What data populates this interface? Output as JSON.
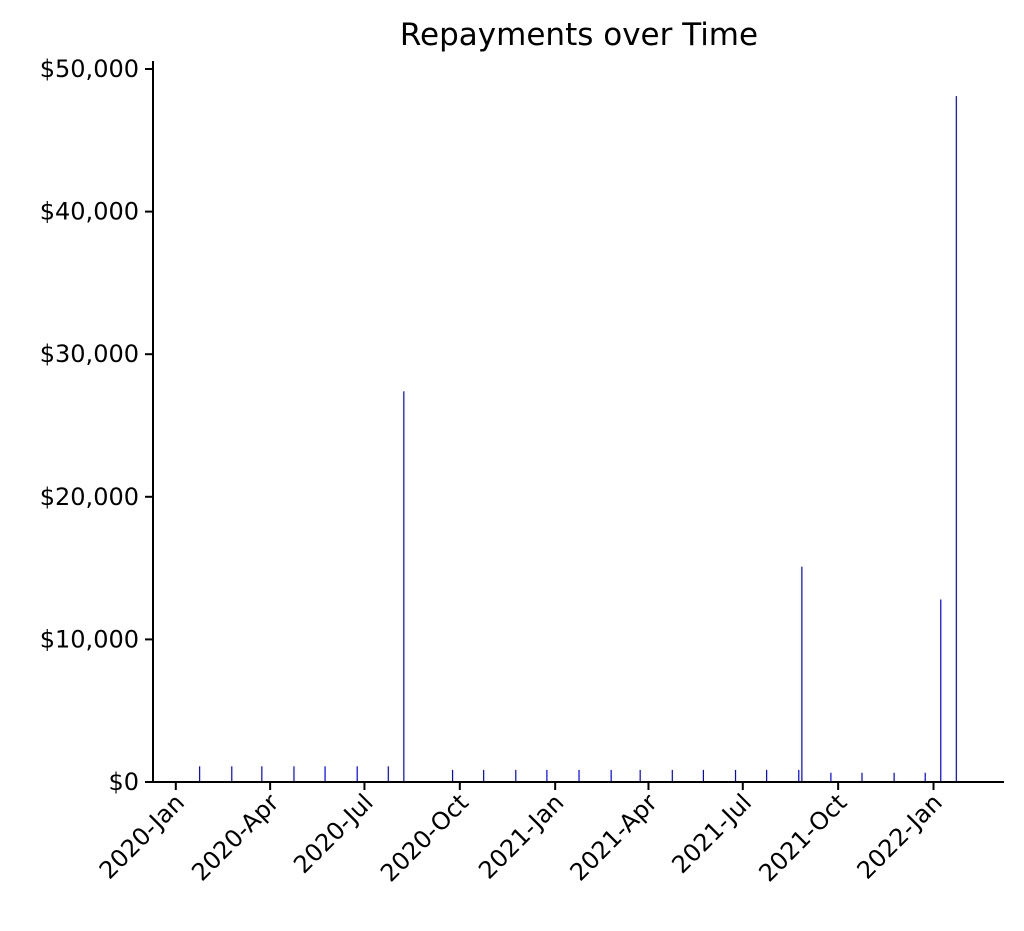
{
  "chart_data": {
    "type": "bar",
    "title": "Repayments over Time",
    "xlabel": "",
    "ylabel": "",
    "xlim": [
      "2019-12-10",
      "2022-03-10"
    ],
    "ylim": [
      0,
      50000
    ],
    "grid": false,
    "bar_color": "#0000ff",
    "y_ticks": [
      {
        "value": 0,
        "label": "$0"
      },
      {
        "value": 10000,
        "label": "$10,000"
      },
      {
        "value": 20000,
        "label": "$20,000"
      },
      {
        "value": 30000,
        "label": "$30,000"
      },
      {
        "value": 40000,
        "label": "$40,000"
      },
      {
        "value": 50000,
        "label": "$50,000"
      }
    ],
    "x_ticks": [
      {
        "date": "2020-01-01",
        "label": "2020-Jan"
      },
      {
        "date": "2020-04-01",
        "label": "2020-Apr"
      },
      {
        "date": "2020-07-01",
        "label": "2020-Jul"
      },
      {
        "date": "2020-10-01",
        "label": "2020-Oct"
      },
      {
        "date": "2021-01-01",
        "label": "2021-Jan"
      },
      {
        "date": "2021-04-01",
        "label": "2021-Apr"
      },
      {
        "date": "2021-07-01",
        "label": "2021-Jul"
      },
      {
        "date": "2021-10-01",
        "label": "2021-Oct"
      },
      {
        "date": "2022-01-01",
        "label": "2022-Jan"
      }
    ],
    "x": [
      "2020-01-24",
      "2020-02-24",
      "2020-03-24",
      "2020-04-24",
      "2020-05-24",
      "2020-06-24",
      "2020-07-24",
      "2020-08-08",
      "2020-09-24",
      "2020-10-24",
      "2020-11-24",
      "2020-12-24",
      "2021-01-24",
      "2021-02-24",
      "2021-03-24",
      "2021-04-24",
      "2021-05-24",
      "2021-06-24",
      "2021-07-24",
      "2021-08-24",
      "2021-08-27",
      "2021-09-24",
      "2021-10-24",
      "2021-11-24",
      "2021-12-24",
      "2022-01-08",
      "2022-01-23"
    ],
    "values": [
      1100,
      1100,
      1100,
      1100,
      1100,
      1100,
      1100,
      27400,
      850,
      850,
      850,
      850,
      850,
      850,
      850,
      850,
      850,
      850,
      850,
      850,
      15100,
      650,
      650,
      650,
      650,
      12800,
      48100
    ]
  }
}
